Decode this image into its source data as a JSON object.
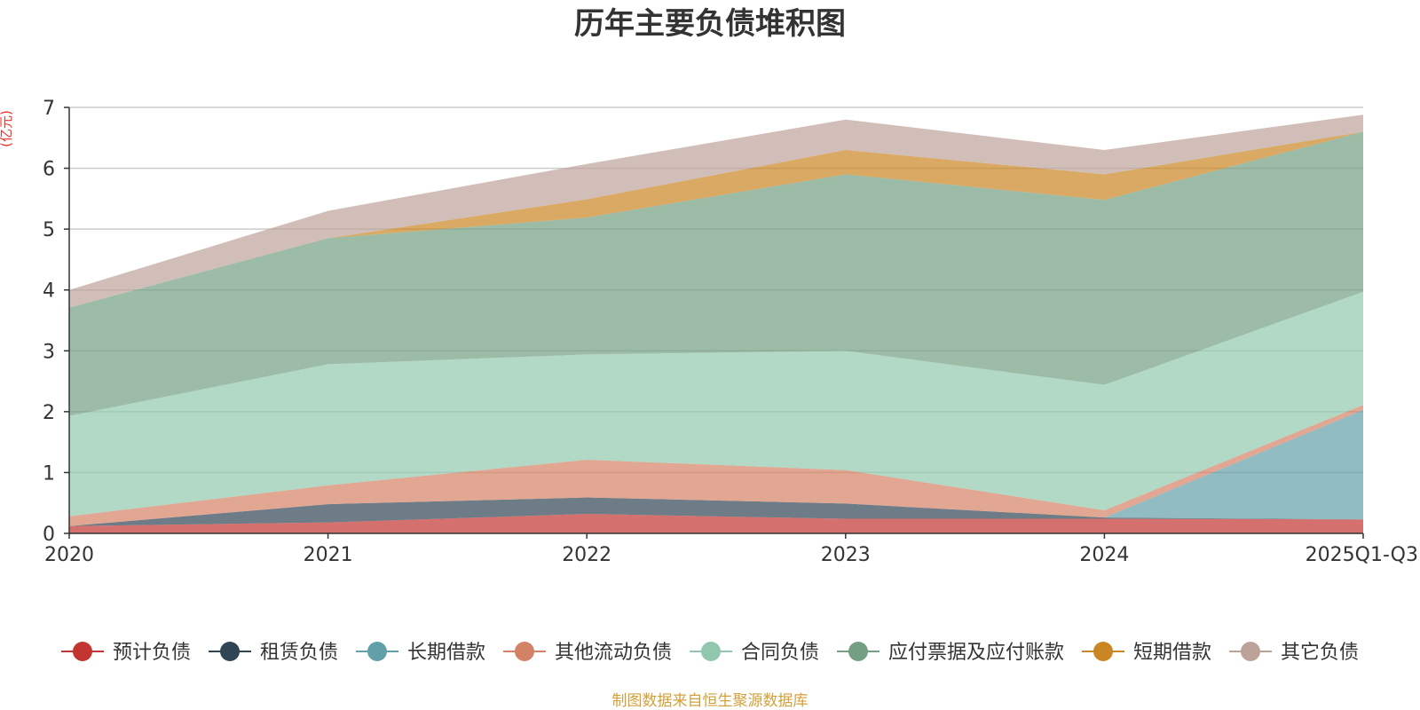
{
  "chart_data": {
    "type": "area",
    "stacked": true,
    "title": "历年主要负债堆积图",
    "unit_label": "(亿元)",
    "x": [
      "2020",
      "2021",
      "2022",
      "2023",
      "2024",
      "2025Q1-Q3"
    ],
    "ylim": [
      0,
      7
    ],
    "yticks": [
      "0",
      "1",
      "2",
      "3",
      "4",
      "5",
      "6",
      "7"
    ],
    "grid": true,
    "legend_position": "bottom",
    "series": [
      {
        "name": "预计负债",
        "color": "#c23531",
        "values": [
          0.12,
          0.18,
          0.32,
          0.24,
          0.24,
          0.23
        ]
      },
      {
        "name": "租赁负债",
        "color": "#2f4554",
        "values": [
          0.0,
          0.3,
          0.27,
          0.25,
          0.02,
          0.0
        ]
      },
      {
        "name": "长期借款",
        "color": "#61a0a8",
        "values": [
          0.0,
          0.0,
          0.0,
          0.0,
          0.0,
          1.8
        ]
      },
      {
        "name": "其他流动负债",
        "color": "#d48265",
        "values": [
          0.16,
          0.31,
          0.62,
          0.55,
          0.12,
          0.08
        ]
      },
      {
        "name": "合同负债",
        "color": "#91c7ae",
        "values": [
          1.65,
          1.99,
          1.73,
          1.96,
          2.06,
          1.86
        ]
      },
      {
        "name": "应付票据及应付账款",
        "color": "#749f83",
        "values": [
          1.78,
          2.07,
          2.25,
          2.9,
          3.04,
          2.63
        ]
      },
      {
        "name": "短期借款",
        "color": "#ca8622",
        "values": [
          0.0,
          0.0,
          0.3,
          0.4,
          0.42,
          0.0
        ]
      },
      {
        "name": "其它负债",
        "color": "#bda29a",
        "values": [
          0.29,
          0.45,
          0.58,
          0.5,
          0.4,
          0.28
        ]
      }
    ],
    "source_note": "制图数据来自恒生聚源数据库"
  }
}
